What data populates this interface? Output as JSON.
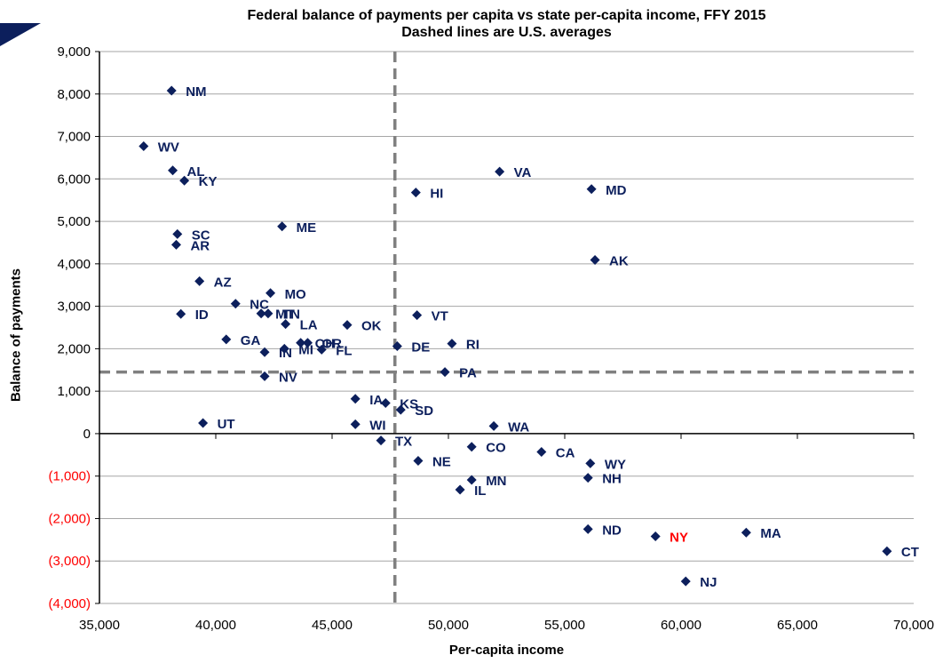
{
  "chart_data": {
    "type": "scatter",
    "title": "Federal balance of payments per capita vs state per-capita income, FFY 2015",
    "subtitle": "Dashed lines are U.S. averages",
    "xlabel": "Per-capita income",
    "ylabel": "Balance of payments",
    "xlim": [
      35000,
      70000
    ],
    "ylim": [
      -4000,
      9000
    ],
    "x_ticks": [
      {
        "value": 35000,
        "label": "35,000"
      },
      {
        "value": 40000,
        "label": "40,000"
      },
      {
        "value": 45000,
        "label": "45,000"
      },
      {
        "value": 50000,
        "label": "50,000"
      },
      {
        "value": 55000,
        "label": "55,000"
      },
      {
        "value": 60000,
        "label": "60,000"
      },
      {
        "value": 65000,
        "label": "65,000"
      },
      {
        "value": 70000,
        "label": "70,000"
      }
    ],
    "y_ticks": [
      {
        "value": 9000,
        "label": "9,000"
      },
      {
        "value": 8000,
        "label": "8,000"
      },
      {
        "value": 7000,
        "label": "7,000"
      },
      {
        "value": 6000,
        "label": "6,000"
      },
      {
        "value": 5000,
        "label": "5,000"
      },
      {
        "value": 4000,
        "label": "4,000"
      },
      {
        "value": 3000,
        "label": "3,000"
      },
      {
        "value": 2000,
        "label": "2,000"
      },
      {
        "value": 1000,
        "label": "1,000"
      },
      {
        "value": 0,
        "label": "0"
      },
      {
        "value": -1000,
        "label": "(1,000)"
      },
      {
        "value": -2000,
        "label": "(2,000)"
      },
      {
        "value": -3000,
        "label": "(3,000)"
      },
      {
        "value": -4000,
        "label": "(4,000)"
      }
    ],
    "averages": {
      "x": 47700,
      "y": 1450
    },
    "grid": "horizontal",
    "legend": "none",
    "colors": {
      "marker": "#0c1f5c",
      "label": "#0c1f5c",
      "highlight": "#ff0000",
      "negative_tick": "#ff0000",
      "grid": "#a6a6a6",
      "average_line": "#808080"
    },
    "points": [
      {
        "label": "NM",
        "x": 38100,
        "y": 8080
      },
      {
        "label": "WV",
        "x": 36900,
        "y": 6770
      },
      {
        "label": "AL",
        "x": 38150,
        "y": 6200
      },
      {
        "label": "KY",
        "x": 38650,
        "y": 5960
      },
      {
        "label": "VA",
        "x": 52200,
        "y": 6170
      },
      {
        "label": "HI",
        "x": 48600,
        "y": 5680
      },
      {
        "label": "MD",
        "x": 56150,
        "y": 5760
      },
      {
        "label": "ME",
        "x": 42850,
        "y": 4880
      },
      {
        "label": "SC",
        "x": 38350,
        "y": 4700
      },
      {
        "label": "AR",
        "x": 38300,
        "y": 4450
      },
      {
        "label": "AK",
        "x": 56300,
        "y": 4090
      },
      {
        "label": "AZ",
        "x": 39300,
        "y": 3590
      },
      {
        "label": "MO",
        "x": 42350,
        "y": 3310
      },
      {
        "label": "NC",
        "x": 40850,
        "y": 3060
      },
      {
        "label": "MT",
        "x": 41950,
        "y": 2830
      },
      {
        "label": "TN",
        "x": 42250,
        "y": 2830
      },
      {
        "label": "ID",
        "x": 38500,
        "y": 2820
      },
      {
        "label": "VT",
        "x": 48650,
        "y": 2790
      },
      {
        "label": "LA",
        "x": 43000,
        "y": 2580
      },
      {
        "label": "OK",
        "x": 45650,
        "y": 2560
      },
      {
        "label": "GA",
        "x": 40450,
        "y": 2220
      },
      {
        "label": "OH",
        "x": 43650,
        "y": 2140
      },
      {
        "label": "OR",
        "x": 43950,
        "y": 2140
      },
      {
        "label": "RI",
        "x": 50150,
        "y": 2120
      },
      {
        "label": "DE",
        "x": 47800,
        "y": 2060
      },
      {
        "label": "MI",
        "x": 42950,
        "y": 2000
      },
      {
        "label": "FL",
        "x": 44550,
        "y": 1980
      },
      {
        "label": "IN",
        "x": 42100,
        "y": 1920
      },
      {
        "label": "PA",
        "x": 49850,
        "y": 1450
      },
      {
        "label": "NV",
        "x": 42100,
        "y": 1350
      },
      {
        "label": "IA",
        "x": 46000,
        "y": 820
      },
      {
        "label": "KS",
        "x": 47300,
        "y": 720
      },
      {
        "label": "SD",
        "x": 47950,
        "y": 560
      },
      {
        "label": "UT",
        "x": 39450,
        "y": 250
      },
      {
        "label": "WI",
        "x": 46000,
        "y": 220
      },
      {
        "label": "WA",
        "x": 51950,
        "y": 180
      },
      {
        "label": "TX",
        "x": 47100,
        "y": -160
      },
      {
        "label": "CO",
        "x": 51000,
        "y": -310
      },
      {
        "label": "CA",
        "x": 54000,
        "y": -430
      },
      {
        "label": "NE",
        "x": 48700,
        "y": -640
      },
      {
        "label": "WY",
        "x": 56100,
        "y": -700
      },
      {
        "label": "NH",
        "x": 56000,
        "y": -1040
      },
      {
        "label": "MN",
        "x": 51000,
        "y": -1090
      },
      {
        "label": "IL",
        "x": 50500,
        "y": -1320
      },
      {
        "label": "ND",
        "x": 56000,
        "y": -2250
      },
      {
        "label": "NY",
        "x": 58900,
        "y": -2420,
        "highlight": true
      },
      {
        "label": "MA",
        "x": 62800,
        "y": -2330
      },
      {
        "label": "CT",
        "x": 68850,
        "y": -2770
      },
      {
        "label": "NJ",
        "x": 60200,
        "y": -3480
      }
    ]
  }
}
